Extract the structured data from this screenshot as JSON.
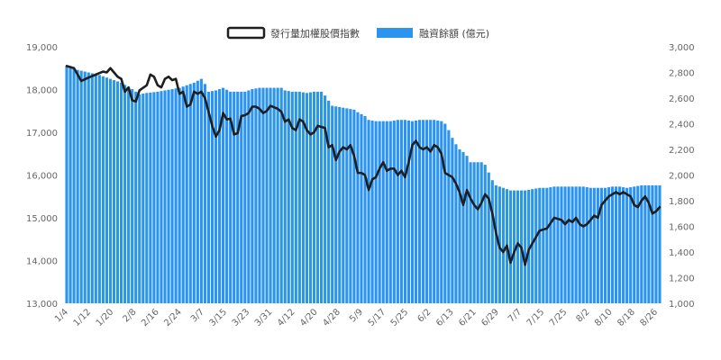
{
  "chart_data": {
    "type": "bar+line",
    "legend": {
      "position": "top-center",
      "items": [
        {
          "label": "發行量加權股價指數",
          "type": "line",
          "color": "#1f1f1f"
        },
        {
          "label": "融資餘額 (億元)",
          "type": "bar",
          "color": "#2a94f0"
        }
      ]
    },
    "x_tick_labels": [
      "1/4",
      "1/12",
      "1/20",
      "2/8",
      "2/16",
      "2/24",
      "3/7",
      "3/15",
      "3/23",
      "3/31",
      "4/12",
      "4/20",
      "4/28",
      "5/9",
      "5/17",
      "5/25",
      "6/2",
      "6/13",
      "6/21",
      "6/29",
      "7/7",
      "7/15",
      "7/25",
      "8/2",
      "8/10",
      "8/18",
      "8/26"
    ],
    "y_left": {
      "min": 13000,
      "max": 19000,
      "ticks": [
        "13,000",
        "14,000",
        "15,000",
        "16,000",
        "17,000",
        "18,000",
        "19,000"
      ]
    },
    "y_right": {
      "min": 1000,
      "max": 3000,
      "ticks": [
        "1,000",
        "1,200",
        "1,400",
        "1,600",
        "1,800",
        "2,000",
        "2,200",
        "2,400",
        "2,600",
        "2,800",
        "3,000"
      ]
    },
    "grid": false,
    "n_points": 164,
    "index_anchors": [
      [
        0,
        18550
      ],
      [
        2,
        18500
      ],
      [
        4,
        18200
      ],
      [
        6,
        18280
      ],
      [
        8,
        18350
      ],
      [
        10,
        18420
      ],
      [
        11,
        18400
      ],
      [
        12,
        18500
      ],
      [
        14,
        18300
      ],
      [
        15,
        18250
      ],
      [
        16,
        17950
      ],
      [
        17,
        18050
      ],
      [
        18,
        17750
      ],
      [
        19,
        17720
      ],
      [
        20,
        17980
      ],
      [
        22,
        18100
      ],
      [
        23,
        18350
      ],
      [
        24,
        18300
      ],
      [
        25,
        18100
      ],
      [
        26,
        18050
      ],
      [
        27,
        18250
      ],
      [
        28,
        18300
      ],
      [
        29,
        18220
      ],
      [
        30,
        18250
      ],
      [
        31,
        17900
      ],
      [
        32,
        17950
      ],
      [
        33,
        17600
      ],
      [
        34,
        17650
      ],
      [
        35,
        17950
      ],
      [
        36,
        17900
      ],
      [
        37,
        17950
      ],
      [
        38,
        17800
      ],
      [
        40,
        17150
      ],
      [
        41,
        16900
      ],
      [
        42,
        17050
      ],
      [
        43,
        17450
      ],
      [
        44,
        17300
      ],
      [
        45,
        17320
      ],
      [
        46,
        16950
      ],
      [
        47,
        16980
      ],
      [
        48,
        17380
      ],
      [
        49,
        17400
      ],
      [
        50,
        17450
      ],
      [
        51,
        17600
      ],
      [
        52,
        17600
      ],
      [
        53,
        17550
      ],
      [
        54,
        17450
      ],
      [
        55,
        17500
      ],
      [
        56,
        17620
      ],
      [
        58,
        17550
      ],
      [
        59,
        17480
      ],
      [
        60,
        17250
      ],
      [
        61,
        17300
      ],
      [
        62,
        17100
      ],
      [
        63,
        17050
      ],
      [
        64,
        17300
      ],
      [
        65,
        17250
      ],
      [
        66,
        17050
      ],
      [
        67,
        16950
      ],
      [
        68,
        17000
      ],
      [
        69,
        17150
      ],
      [
        71,
        17100
      ],
      [
        72,
        16650
      ],
      [
        73,
        16700
      ],
      [
        74,
        16350
      ],
      [
        75,
        16550
      ],
      [
        76,
        16650
      ],
      [
        77,
        16600
      ],
      [
        78,
        16700
      ],
      [
        79,
        16450
      ],
      [
        80,
        16050
      ],
      [
        81,
        16050
      ],
      [
        82,
        16000
      ],
      [
        83,
        15650
      ],
      [
        84,
        15900
      ],
      [
        85,
        15950
      ],
      [
        86,
        16150
      ],
      [
        87,
        16300
      ],
      [
        88,
        16100
      ],
      [
        89,
        16150
      ],
      [
        90,
        16150
      ],
      [
        91,
        16000
      ],
      [
        92,
        16100
      ],
      [
        93,
        15950
      ],
      [
        94,
        16300
      ],
      [
        95,
        16700
      ],
      [
        96,
        16800
      ],
      [
        97,
        16650
      ],
      [
        98,
        16600
      ],
      [
        99,
        16650
      ],
      [
        100,
        16550
      ],
      [
        101,
        16700
      ],
      [
        102,
        16650
      ],
      [
        103,
        16500
      ],
      [
        104,
        16050
      ],
      [
        105,
        16000
      ],
      [
        106,
        15950
      ],
      [
        107,
        15800
      ],
      [
        108,
        15600
      ],
      [
        109,
        15300
      ],
      [
        110,
        15650
      ],
      [
        111,
        15450
      ],
      [
        112,
        15300
      ],
      [
        113,
        15200
      ],
      [
        114,
        15350
      ],
      [
        115,
        15550
      ],
      [
        116,
        15450
      ],
      [
        117,
        15100
      ],
      [
        118,
        14650
      ],
      [
        119,
        14300
      ],
      [
        120,
        14200
      ],
      [
        121,
        14350
      ],
      [
        122,
        13950
      ],
      [
        123,
        14200
      ],
      [
        124,
        14400
      ],
      [
        125,
        14300
      ],
      [
        126,
        13900
      ],
      [
        127,
        14250
      ],
      [
        128,
        14400
      ],
      [
        129,
        14550
      ],
      [
        130,
        14700
      ],
      [
        132,
        14750
      ],
      [
        134,
        15000
      ],
      [
        136,
        14950
      ],
      [
        137,
        14850
      ],
      [
        138,
        14950
      ],
      [
        139,
        14900
      ],
      [
        140,
        15000
      ],
      [
        141,
        14850
      ],
      [
        142,
        14800
      ],
      [
        143,
        14850
      ],
      [
        144,
        14950
      ],
      [
        145,
        15050
      ],
      [
        146,
        15000
      ],
      [
        147,
        15300
      ],
      [
        148,
        15400
      ],
      [
        149,
        15500
      ],
      [
        150,
        15550
      ],
      [
        151,
        15600
      ],
      [
        152,
        15550
      ],
      [
        153,
        15600
      ],
      [
        155,
        15500
      ],
      [
        156,
        15300
      ],
      [
        157,
        15250
      ],
      [
        158,
        15400
      ],
      [
        159,
        15500
      ],
      [
        160,
        15350
      ],
      [
        161,
        15100
      ],
      [
        162,
        15150
      ],
      [
        163,
        15250
      ]
    ],
    "margin_anchors": [
      [
        0,
        2850
      ],
      [
        3,
        2820
      ],
      [
        6,
        2800
      ],
      [
        9,
        2780
      ],
      [
        12,
        2750
      ],
      [
        15,
        2720
      ],
      [
        18,
        2670
      ],
      [
        20,
        2630
      ],
      [
        22,
        2640
      ],
      [
        25,
        2650
      ],
      [
        27,
        2660
      ],
      [
        29,
        2670
      ],
      [
        31,
        2680
      ],
      [
        33,
        2700
      ],
      [
        35,
        2720
      ],
      [
        37,
        2750
      ],
      [
        38,
        2710
      ],
      [
        39,
        2650
      ],
      [
        41,
        2660
      ],
      [
        43,
        2680
      ],
      [
        45,
        2650
      ],
      [
        47,
        2650
      ],
      [
        49,
        2650
      ],
      [
        51,
        2670
      ],
      [
        53,
        2680
      ],
      [
        55,
        2680
      ],
      [
        57,
        2680
      ],
      [
        59,
        2680
      ],
      [
        60,
        2660
      ],
      [
        62,
        2650
      ],
      [
        64,
        2650
      ],
      [
        66,
        2640
      ],
      [
        68,
        2650
      ],
      [
        70,
        2650
      ],
      [
        71,
        2620
      ],
      [
        72,
        2580
      ],
      [
        73,
        2540
      ],
      [
        75,
        2530
      ],
      [
        77,
        2520
      ],
      [
        79,
        2510
      ],
      [
        80,
        2490
      ],
      [
        82,
        2460
      ],
      [
        83,
        2430
      ],
      [
        85,
        2420
      ],
      [
        87,
        2420
      ],
      [
        89,
        2420
      ],
      [
        91,
        2430
      ],
      [
        93,
        2430
      ],
      [
        95,
        2420
      ],
      [
        97,
        2430
      ],
      [
        99,
        2430
      ],
      [
        101,
        2430
      ],
      [
        103,
        2420
      ],
      [
        104,
        2400
      ],
      [
        105,
        2350
      ],
      [
        106,
        2290
      ],
      [
        107,
        2240
      ],
      [
        108,
        2200
      ],
      [
        109,
        2180
      ],
      [
        110,
        2150
      ],
      [
        111,
        2100
      ],
      [
        112,
        2100
      ],
      [
        113,
        2100
      ],
      [
        114,
        2100
      ],
      [
        115,
        2080
      ],
      [
        116,
        2020
      ],
      [
        117,
        1960
      ],
      [
        118,
        1920
      ],
      [
        120,
        1900
      ],
      [
        122,
        1880
      ],
      [
        124,
        1880
      ],
      [
        126,
        1880
      ],
      [
        128,
        1890
      ],
      [
        130,
        1900
      ],
      [
        132,
        1900
      ],
      [
        134,
        1910
      ],
      [
        136,
        1910
      ],
      [
        138,
        1910
      ],
      [
        140,
        1910
      ],
      [
        142,
        1910
      ],
      [
        144,
        1900
      ],
      [
        146,
        1900
      ],
      [
        148,
        1900
      ],
      [
        150,
        1910
      ],
      [
        152,
        1910
      ],
      [
        154,
        1900
      ],
      [
        156,
        1910
      ],
      [
        158,
        1920
      ],
      [
        160,
        1920
      ],
      [
        162,
        1920
      ],
      [
        163,
        1920
      ]
    ]
  }
}
